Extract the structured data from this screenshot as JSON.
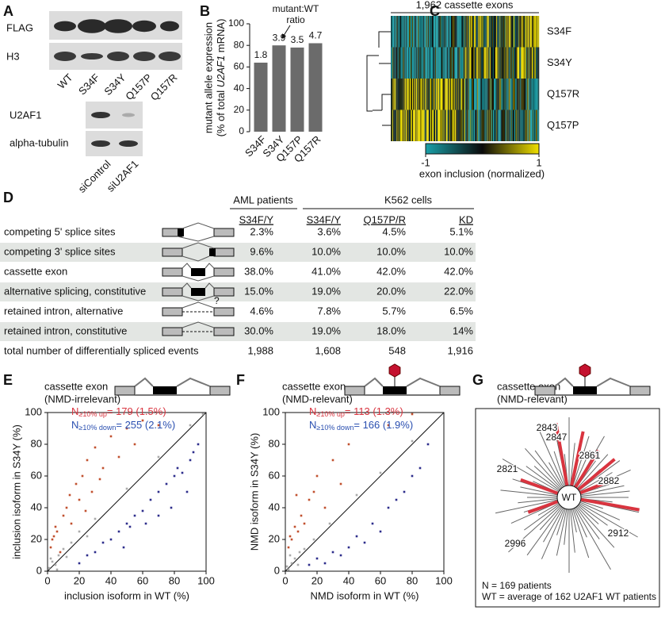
{
  "panels": [
    "A",
    "B",
    "C",
    "D",
    "E",
    "F",
    "G"
  ],
  "blots": {
    "top_labels": [
      "FLAG",
      "H3"
    ],
    "lanes": [
      "WT",
      "S34F",
      "S34Y",
      "Q157P",
      "Q157R"
    ],
    "bottom_labels": [
      "U2AF1",
      "alpha-tubulin"
    ],
    "bottom_lanes": [
      "siControl",
      "siU2AF1"
    ]
  },
  "heatmap": {
    "title": "1,962 cassette exons",
    "rows": [
      "S34F",
      "S34Y",
      "Q157R",
      "Q157P"
    ],
    "colorbar_ticks": [
      -1,
      1
    ],
    "colorbar_label": "exon inclusion (normalized)"
  },
  "table": {
    "group_headers": [
      "AML patients",
      "K562 cells"
    ],
    "columns": [
      "S34F/Y",
      "S34F/Y",
      "Q157P/R",
      "KD"
    ],
    "rows": [
      [
        "competing 5' splice sites",
        "2.3%",
        "3.6%",
        "4.5%",
        "5.1%"
      ],
      [
        "competing 3' splice sites",
        "9.6%",
        "10.0%",
        "10.0%",
        "10.0%"
      ],
      [
        "cassette exon",
        "38.0%",
        "41.0%",
        "42.0%",
        "42.0%"
      ],
      [
        "alternative splicing, constitutive",
        "15.0%",
        "19.0%",
        "20.0%",
        "22.0%"
      ],
      [
        "retained intron, alternative",
        "4.6%",
        "7.8%",
        "5.7%",
        "6.5%"
      ],
      [
        "retained intron, constitutive",
        "30.0%",
        "19.0%",
        "18.0%",
        "14%"
      ],
      [
        "total number of differentially spliced events",
        "1,988",
        "1,608",
        "548",
        "1,916"
      ]
    ],
    "question_mark": "?"
  },
  "chart_data": [
    {
      "type": "bar",
      "ylabel_line1": "mutant allele expression",
      "ylabel_line2": [
        "(% of total ",
        "U2AF1",
        " mRNA)"
      ],
      "categories": [
        "S34F",
        "S34Y",
        "Q157P",
        "Q157R"
      ],
      "values": [
        64,
        80,
        78,
        82
      ],
      "ratios": [
        "1.8",
        "3.9",
        "3.5",
        "4.7"
      ],
      "annotation": [
        "mutant:WT",
        "ratio"
      ],
      "color": "#6b6b6b",
      "ylim": [
        0,
        100
      ],
      "yticks": [
        0,
        20,
        40,
        60,
        80,
        100
      ]
    },
    {
      "type": "scatter",
      "title": [
        "cassette exon",
        "(NMD-irrelevant)"
      ],
      "xlabel": "inclusion isoform in WT (%)",
      "ylabel": "inclusion isoform in S34Y (%)",
      "xlim": [
        0,
        100
      ],
      "ylim": [
        0,
        100
      ],
      "xticks": [
        0,
        20,
        40,
        60,
        80,
        100
      ],
      "yticks": [
        0,
        20,
        40,
        60,
        80,
        100
      ],
      "series": [
        {
          "color": "#aaaaaa",
          "x": [
            1,
            3,
            5,
            7,
            10,
            15,
            20,
            30,
            50,
            70,
            90,
            98,
            2,
            6,
            12,
            25
          ],
          "values": [
            2,
            6,
            4,
            10,
            14,
            18,
            25,
            33,
            52,
            72,
            92,
            99,
            8,
            1,
            9,
            22
          ]
        },
        {
          "color": "#c1502e",
          "x": [
            2,
            4,
            5,
            8,
            10,
            12,
            15,
            18,
            20,
            22,
            25,
            28,
            30,
            35,
            40,
            45,
            50,
            55,
            60,
            70,
            3,
            6,
            14,
            24,
            33
          ],
          "values": [
            15,
            22,
            28,
            12,
            35,
            40,
            30,
            55,
            45,
            60,
            70,
            50,
            78,
            65,
            85,
            72,
            90,
            80,
            95,
            92,
            20,
            25,
            48,
            38,
            58
          ]
        },
        {
          "color": "#2d2d8c",
          "x": [
            20,
            25,
            30,
            35,
            40,
            45,
            50,
            55,
            60,
            65,
            70,
            75,
            80,
            85,
            90,
            95,
            88,
            92,
            78,
            62,
            48,
            52,
            70,
            82
          ],
          "values": [
            5,
            10,
            12,
            18,
            20,
            25,
            30,
            35,
            38,
            45,
            50,
            55,
            60,
            62,
            70,
            80,
            50,
            75,
            40,
            30,
            15,
            28,
            35,
            65
          ]
        }
      ],
      "annotations": [
        {
          "n": "N",
          "sub": "≥10% up",
          "rest": "= 179 (1.5%)",
          "color": "#d9343f"
        },
        {
          "n": "N",
          "sub": "≥10% down",
          "rest": "= 255 (2.1%)",
          "color": "#2a4fb0"
        }
      ]
    },
    {
      "type": "scatter",
      "title": [
        "cassette exon",
        "(NMD-relevant)"
      ],
      "xlabel": "NMD isoform in WT (%)",
      "ylabel": "NMD isoform in S34Y (%)",
      "xlim": [
        0,
        100
      ],
      "ylim": [
        0,
        100
      ],
      "xticks": [
        0,
        20,
        40,
        60,
        80,
        100
      ],
      "yticks": [
        0,
        20,
        40,
        60,
        80,
        100
      ],
      "series": [
        {
          "color": "#aaaaaa",
          "x": [
            1,
            2,
            4,
            6,
            8,
            12,
            18,
            28,
            45,
            60,
            80,
            3,
            9
          ],
          "values": [
            3,
            1,
            5,
            8,
            4,
            14,
            20,
            30,
            48,
            62,
            82,
            10,
            12
          ]
        },
        {
          "color": "#c1502e",
          "x": [
            2,
            4,
            6,
            8,
            10,
            12,
            15,
            18,
            20,
            25,
            30,
            35,
            40,
            65,
            80,
            3,
            7
          ],
          "values": [
            15,
            20,
            28,
            25,
            35,
            30,
            45,
            50,
            60,
            40,
            70,
            55,
            80,
            92,
            99,
            22,
            48
          ]
        },
        {
          "color": "#2d2d8c",
          "x": [
            15,
            20,
            25,
            30,
            40,
            45,
            50,
            55,
            60,
            65,
            70,
            75,
            80,
            85,
            90,
            35
          ],
          "values": [
            4,
            8,
            5,
            12,
            15,
            22,
            18,
            30,
            25,
            40,
            45,
            50,
            60,
            65,
            80,
            10
          ]
        }
      ],
      "annotations": [
        {
          "n": "N",
          "sub": "≥10% up",
          "rest": "= 113 (1.3%)",
          "color": "#d9343f"
        },
        {
          "n": "N",
          "sub": "≥10% down",
          "rest": "= 166 (1.9%)",
          "color": "#2a4fb0"
        }
      ]
    }
  ],
  "radial": {
    "title": [
      "cassette exon",
      "(NMD-relevant)"
    ],
    "center": "WT",
    "patients": [
      "2843",
      "2847",
      "2861",
      "2821",
      "2882",
      "2996",
      "2912"
    ],
    "notes": [
      "N = 169 patients",
      "WT = average of 162 U2AF1 WT patients"
    ],
    "spikes": [
      60,
      40,
      75,
      30,
      55,
      85,
      45,
      35,
      70,
      50,
      90,
      40,
      65,
      30,
      55,
      80,
      45,
      60,
      35,
      70,
      50,
      75,
      40,
      88,
      55,
      30,
      65,
      45,
      80,
      50,
      38,
      72,
      48,
      60,
      35,
      82,
      52,
      44,
      68,
      58,
      36,
      76,
      46,
      62,
      40,
      86,
      54,
      34,
      66,
      50,
      74,
      42,
      58,
      38,
      64,
      48,
      70,
      44,
      56,
      62
    ],
    "highlighted": [
      80,
      70,
      55,
      60,
      45,
      75,
      40,
      50
    ]
  }
}
